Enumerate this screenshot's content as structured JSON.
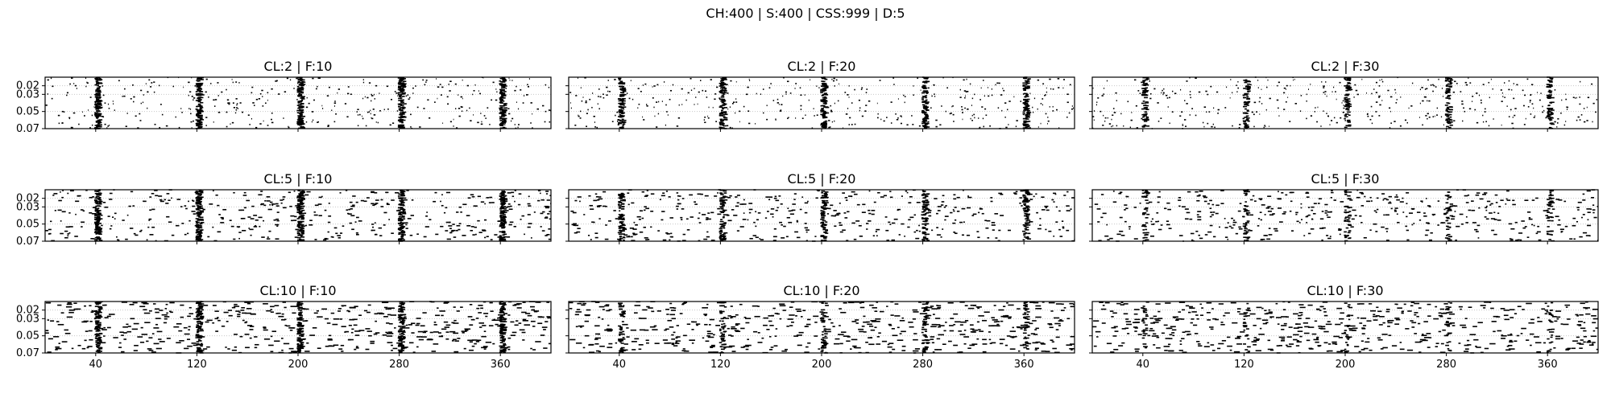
{
  "figure": {
    "suptitle": "CH:400 | S:400 | CSS:999 | D:5"
  },
  "chart_data": {
    "type": "scatter",
    "style": "raster plot with horizontal dash markers",
    "marker_color": "#000000",
    "grid": "horizontal dotted lines at y ticks",
    "x_ticks": [
      40,
      120,
      200,
      280,
      360
    ],
    "x_tick_labels": [
      "40",
      "120",
      "200",
      "280",
      "360"
    ],
    "y_ticks": [
      0.02,
      0.03,
      0.05,
      0.07
    ],
    "y_tick_labels": [
      "0.02",
      "0.03",
      "0.05",
      "0.07"
    ],
    "xlim": [
      0,
      400
    ],
    "ylim": [
      0.07,
      0.01
    ],
    "rows": 3,
    "cols": 3,
    "panels": [
      {
        "title": "CL:2 | F:10",
        "cl": 2,
        "f": 10,
        "bursts": [
          40,
          120,
          200,
          280,
          360
        ],
        "burst_strength": 1.0
      },
      {
        "title": "CL:2 | F:20",
        "cl": 2,
        "f": 20,
        "bursts": [
          40,
          120,
          200,
          280,
          360
        ],
        "burst_strength": 0.95
      },
      {
        "title": "CL:2 | F:30",
        "cl": 2,
        "f": 30,
        "bursts": [
          40,
          120,
          200,
          280,
          360
        ],
        "burst_strength": 0.9
      },
      {
        "title": "CL:5 | F:10",
        "cl": 5,
        "f": 10,
        "bursts": [
          40,
          120,
          200,
          280,
          360
        ],
        "burst_strength": 0.9
      },
      {
        "title": "CL:5 | F:20",
        "cl": 5,
        "f": 20,
        "bursts": [
          40,
          120,
          200,
          280,
          360
        ],
        "burst_strength": 0.7
      },
      {
        "title": "CL:5 | F:30",
        "cl": 5,
        "f": 30,
        "bursts": [
          40,
          120,
          200,
          280,
          360
        ],
        "burst_strength": 0.5
      },
      {
        "title": "CL:10 | F:10",
        "cl": 10,
        "f": 10,
        "bursts": [
          40,
          120,
          200,
          280,
          360
        ],
        "burst_strength": 0.8
      },
      {
        "title": "CL:10 | F:20",
        "cl": 10,
        "f": 20,
        "bursts": [
          40,
          120,
          200,
          280,
          360
        ],
        "burst_strength": 0.45
      },
      {
        "title": "CL:10 | F:30",
        "cl": 10,
        "f": 30,
        "bursts": [
          40,
          120,
          200,
          280,
          360
        ],
        "burst_strength": 0.3
      }
    ]
  }
}
